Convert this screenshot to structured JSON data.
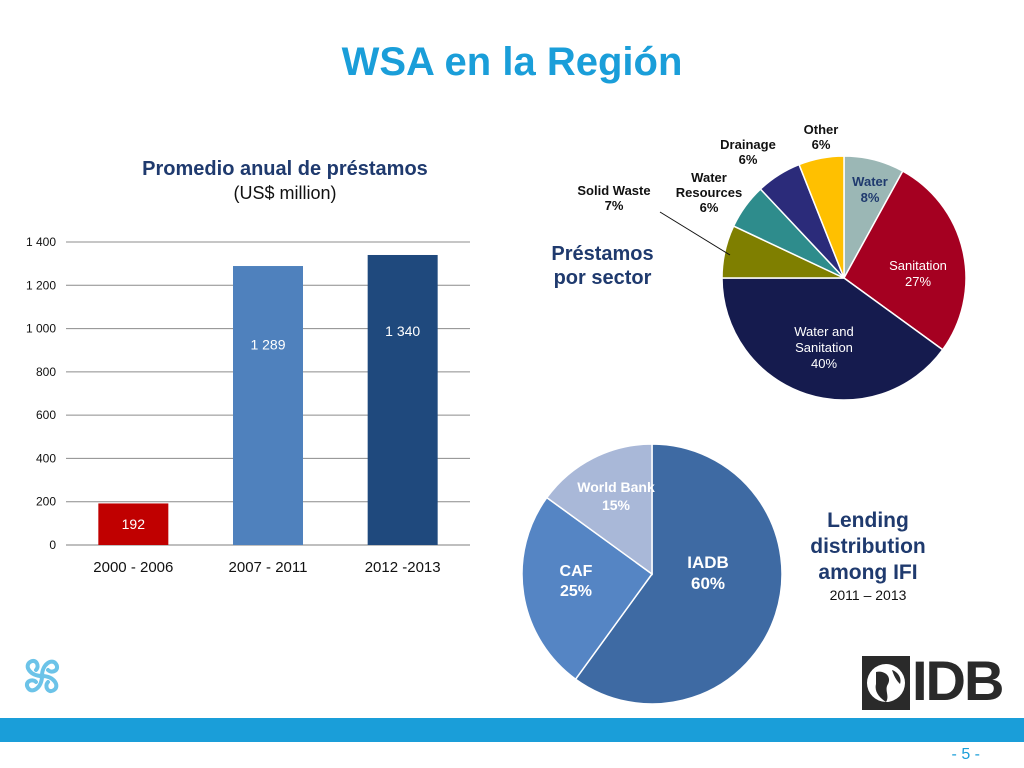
{
  "slide": {
    "title": "WSA en la Región",
    "sector_heading_line1": "Préstamos",
    "sector_heading_line2": "por sector",
    "ifi_heading_line1": "Lending",
    "ifi_heading_line2": "distribution",
    "ifi_heading_line3": "among IFI",
    "ifi_period": "2011 – 2013",
    "page_number": "- 5 -",
    "logo_text": "IDB"
  },
  "colors": {
    "title": "#1a9ed9",
    "heading": "#1f3a6e",
    "footer_band": "#1a9ed9"
  },
  "chart_data": [
    {
      "type": "bar",
      "title": "Promedio anual de préstamos",
      "subtitle": "(US$ million)",
      "categories": [
        "2000 - 2006",
        "2007 - 2011",
        "2012 -2013"
      ],
      "values": [
        192,
        1289,
        1340
      ],
      "data_labels": [
        "192",
        "1 289",
        "1 340"
      ],
      "bar_colors": [
        "#c00000",
        "#4f81bd",
        "#1f497d"
      ],
      "ylim": [
        0,
        1400
      ],
      "yticks": [
        0,
        200,
        400,
        600,
        800,
        1000,
        1200,
        1400
      ],
      "ytick_labels": [
        "0",
        "200",
        "400",
        "600",
        "800",
        "1 000",
        "1 200",
        "1 400"
      ],
      "grid": true
    },
    {
      "type": "pie",
      "slices": [
        {
          "label": "Water",
          "pct_label": "8%",
          "value": 8,
          "color": "#9bb7b5"
        },
        {
          "label": "Sanitation",
          "pct_label": "27%",
          "value": 27,
          "color": "#a50021"
        },
        {
          "label": "Water and Sanitation",
          "pct_label": "40%",
          "value": 40,
          "color": "#151b4e"
        },
        {
          "label": "Solid Waste",
          "pct_label": "7%",
          "value": 7,
          "color": "#7f7f00"
        },
        {
          "label": "Water Resources",
          "pct_label": "6%",
          "value": 6,
          "color": "#2e8c8c"
        },
        {
          "label": "Drainage",
          "pct_label": "6%",
          "value": 6,
          "color": "#2b2b7a"
        },
        {
          "label": "Other",
          "pct_label": "6%",
          "value": 6,
          "color": "#ffc000"
        }
      ]
    },
    {
      "type": "pie",
      "slices": [
        {
          "label": "IADB",
          "pct_label": "60%",
          "value": 60,
          "color": "#3e6aa3"
        },
        {
          "label": "CAF",
          "pct_label": "25%",
          "value": 25,
          "color": "#5585c4"
        },
        {
          "label": "World Bank",
          "pct_label": "15%",
          "value": 15,
          "color": "#a9b8d8"
        }
      ]
    }
  ]
}
